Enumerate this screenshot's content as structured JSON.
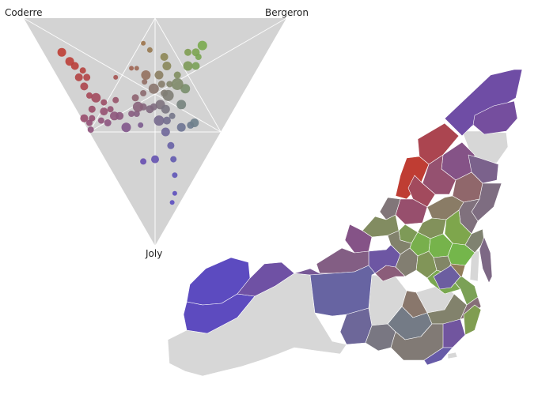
{
  "ternary": {
    "vertices": {
      "top_left": "Coderre",
      "top_right": "Bergeron",
      "bottom": "Joly"
    },
    "background": "#d3d3d3",
    "candidate_colors": {
      "Coderre": "#c23b2e",
      "Bergeron": "#6fbf4a",
      "Joly": "#5a48c4"
    },
    "points": [
      {
        "a": 0.78,
        "b": 0.07,
        "r": 5.5
      },
      {
        "a": 0.73,
        "b": 0.08,
        "r": 5.5
      },
      {
        "a": 0.7,
        "b": 0.09,
        "r": 5.0
      },
      {
        "a": 0.66,
        "b": 0.08,
        "r": 5.0
      },
      {
        "a": 0.66,
        "b": 0.11,
        "r": 4.0
      },
      {
        "a": 0.63,
        "b": 0.11,
        "r": 4.5
      },
      {
        "a": 0.62,
        "b": 0.08,
        "r": 5.0
      },
      {
        "a": 0.58,
        "b": 0.08,
        "r": 4.0
      },
      {
        "a": 0.55,
        "b": 0.1,
        "r": 6.0
      },
      {
        "a": 0.54,
        "b": 0.06,
        "r": 4.5
      },
      {
        "a": 0.55,
        "b": 0.01,
        "r": 5.0
      },
      {
        "a": 0.52,
        "b": 0.04,
        "r": 4.0
      },
      {
        "a": 0.52,
        "b": 0.02,
        "r": 4.0
      },
      {
        "a": 0.5,
        "b": 0.01,
        "r": 4.0
      },
      {
        "a": 0.51,
        "b": 0.12,
        "r": 4.0
      },
      {
        "a": 0.49,
        "b": 0.1,
        "r": 5.0
      },
      {
        "a": 0.48,
        "b": 0.07,
        "r": 4.0
      },
      {
        "a": 0.45,
        "b": 0.09,
        "r": 4.5
      },
      {
        "a": 0.47,
        "b": 0.13,
        "r": 4.0
      },
      {
        "a": 0.44,
        "b": 0.13,
        "r": 5.5
      },
      {
        "a": 0.42,
        "b": 0.15,
        "r": 5.0
      },
      {
        "a": 0.38,
        "b": 0.2,
        "r": 4.0
      },
      {
        "a": 0.36,
        "b": 0.22,
        "r": 4.0
      },
      {
        "a": 0.32,
        "b": 0.21,
        "r": 3.5
      },
      {
        "a": 0.47,
        "b": 0.17,
        "r": 4.0
      },
      {
        "a": 0.4,
        "b": 0.25,
        "r": 4.5
      },
      {
        "a": 0.38,
        "b": 0.29,
        "r": 4.0
      },
      {
        "a": 0.4,
        "b": 0.32,
        "r": 3.5
      },
      {
        "a": 0.41,
        "b": 0.34,
        "r": 6.0
      },
      {
        "a": 0.35,
        "b": 0.34,
        "r": 6.5
      },
      {
        "a": 0.33,
        "b": 0.38,
        "r": 4.5
      },
      {
        "a": 0.3,
        "b": 0.41,
        "r": 4.0
      },
      {
        "a": 0.3,
        "b": 0.37,
        "r": 4.5
      },
      {
        "a": 0.36,
        "b": 0.39,
        "r": 5.5
      },
      {
        "a": 0.35,
        "b": 0.44,
        "r": 5.5
      },
      {
        "a": 0.38,
        "b": 0.45,
        "r": 5.0
      },
      {
        "a": 0.29,
        "b": 0.46,
        "r": 4.5
      },
      {
        "a": 0.27,
        "b": 0.52,
        "r": 6.0
      },
      {
        "a": 0.3,
        "b": 0.55,
        "r": 4.5
      },
      {
        "a": 0.27,
        "b": 0.58,
        "r": 5.0
      },
      {
        "a": 0.26,
        "b": 0.62,
        "r": 6.0
      },
      {
        "a": 0.25,
        "b": 0.58,
        "r": 4.0
      },
      {
        "a": 0.24,
        "b": 0.55,
        "r": 5.0
      },
      {
        "a": 0.23,
        "b": 0.46,
        "r": 6.0
      },
      {
        "a": 0.27,
        "b": 0.44,
        "r": 7.5
      },
      {
        "a": 0.28,
        "b": 0.38,
        "r": 7.0
      },
      {
        "a": 0.29,
        "b": 0.33,
        "r": 6.0
      },
      {
        "a": 0.31,
        "b": 0.3,
        "r": 4.5
      },
      {
        "a": 0.26,
        "b": 0.34,
        "r": 5.5
      },
      {
        "a": 0.26,
        "b": 0.29,
        "r": 6.5
      },
      {
        "a": 0.23,
        "b": 0.32,
        "r": 5.0
      },
      {
        "a": 0.22,
        "b": 0.35,
        "r": 4.0
      },
      {
        "a": 0.32,
        "b": 0.28,
        "r": 5.0
      },
      {
        "a": 0.35,
        "b": 0.26,
        "r": 4.5
      },
      {
        "a": 0.37,
        "b": 0.24,
        "r": 6.5
      },
      {
        "a": 0.37,
        "b": 0.15,
        "r": 6.0
      },
      {
        "a": 0.21,
        "b": 0.29,
        "r": 5.5
      },
      {
        "a": 0.16,
        "b": 0.36,
        "r": 5.5
      },
      {
        "a": 0.21,
        "b": 0.41,
        "r": 6.0
      },
      {
        "a": 0.13,
        "b": 0.4,
        "r": 4.5
      },
      {
        "a": 0.12,
        "b": 0.42,
        "r": 5.5
      },
      {
        "a": 0.23,
        "b": 0.14,
        "r": 4.0
      },
      {
        "a": 0.19,
        "b": 0.19,
        "r": 5.0
      },
      {
        "a": 0.16,
        "b": 0.28,
        "r": 4.5
      },
      {
        "a": 0.12,
        "b": 0.26,
        "r": 4.0
      },
      {
        "a": 0.08,
        "b": 0.23,
        "r": 3.5
      },
      {
        "a": 0.04,
        "b": 0.19,
        "r": 3.0
      },
      {
        "a": 0.03,
        "b": 0.16,
        "r": 3.0
      },
      {
        "a": 0.46,
        "b": 0.32,
        "r": 3.0
      },
      {
        "a": 0.48,
        "b": 0.3,
        "r": 3.0
      },
      {
        "a": 0.52,
        "b": 0.22,
        "r": 3.0
      },
      {
        "a": 0.45,
        "b": 0.41,
        "r": 3.5
      },
      {
        "a": 0.49,
        "b": 0.4,
        "r": 3.0
      }
    ]
  },
  "map": {
    "nodata_color": "#d7d7d7",
    "districts": [
      {
        "a": 0.3,
        "b": 0.1
      },
      {
        "a": 0.34,
        "b": 0.08
      },
      {
        "a": 0.62,
        "b": 0.06
      },
      {
        "a": 0.4,
        "b": 0.12
      },
      {
        "a": 0.8,
        "b": 0.05
      },
      {
        "a": 0.48,
        "b": 0.12
      },
      {
        "a": 0.55,
        "b": 0.1
      },
      {
        "a": 0.3,
        "b": 0.25
      },
      {
        "a": 0.4,
        "b": 0.28
      },
      {
        "a": 0.5,
        "b": 0.1
      },
      {
        "a": 0.3,
        "b": 0.3
      },
      {
        "a": 0.3,
        "b": 0.32
      },
      {
        "a": 0.35,
        "b": 0.38
      },
      {
        "a": 0.3,
        "b": 0.48
      },
      {
        "a": 0.3,
        "b": 0.34
      },
      {
        "a": 0.3,
        "b": 0.62
      },
      {
        "a": 0.28,
        "b": 0.52
      },
      {
        "a": 0.28,
        "b": 0.4
      },
      {
        "a": 0.24,
        "b": 0.66
      },
      {
        "a": 0.22,
        "b": 0.7
      },
      {
        "a": 0.2,
        "b": 0.72
      },
      {
        "a": 0.3,
        "b": 0.45
      },
      {
        "a": 0.3,
        "b": 0.4
      },
      {
        "a": 0.3,
        "b": 0.5
      },
      {
        "a": 0.3,
        "b": 0.42
      },
      {
        "a": 0.4,
        "b": 0.4
      },
      {
        "a": 0.3,
        "b": 0.38
      },
      {
        "a": 0.25,
        "b": 0.6
      },
      {
        "a": 0.25,
        "b": 0.55
      },
      {
        "a": 0.35,
        "b": 0.35
      },
      {
        "a": 0.3,
        "b": 0.4
      },
      {
        "a": 0.34,
        "b": 0.3
      },
      {
        "a": 0.4,
        "b": 0.12
      },
      {
        "a": 0.3,
        "b": 0.55
      },
      {
        "a": 0.4,
        "b": 0.2
      },
      {
        "a": 0.25,
        "b": 0.2
      },
      {
        "a": 0.35,
        "b": 0.22
      },
      {
        "a": 0.1,
        "b": 0.12
      },
      {
        "a": 0.12,
        "b": 0.12
      },
      {
        "a": 0.28,
        "b": 0.15
      },
      {
        "a": 0.3,
        "b": 0.2
      },
      {
        "a": 0.15,
        "b": 0.3
      },
      {
        "a": 0.2,
        "b": 0.3
      },
      {
        "a": 0.25,
        "b": 0.35
      },
      {
        "a": 0.2,
        "b": 0.38
      },
      {
        "a": 0.3,
        "b": 0.36
      },
      {
        "a": 0.28,
        "b": 0.18
      },
      {
        "a": 0.18,
        "b": 0.25
      },
      {
        "a": 0.3,
        "b": 0.28
      },
      {
        "a": 0.22,
        "b": 0.25
      }
    ]
  }
}
